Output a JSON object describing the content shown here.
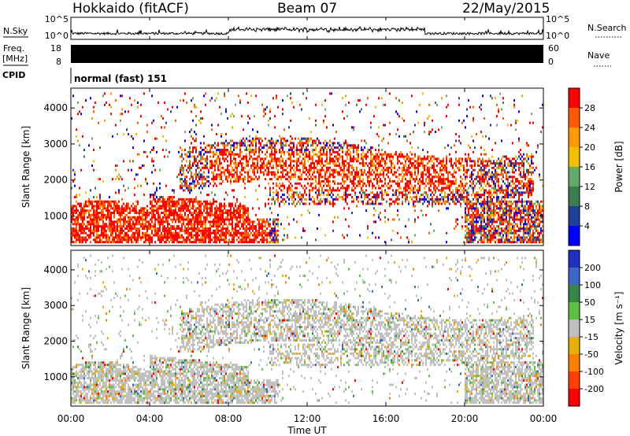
{
  "header": {
    "title": "Hokkaido (fitACF)",
    "beam": "Beam 07",
    "date": "22/May/2015"
  },
  "strips": {
    "nsky_label": "N.Sky",
    "nsearch_label": "N.Search",
    "nsky_ticks": [
      "10^5",
      "10^0"
    ],
    "freq_label_top": "Freq.",
    "freq_label_unit": "[MHz]",
    "freq_ticks": [
      "18",
      "8"
    ],
    "nave_label": "Nave",
    "nave_ticks": [
      "60",
      "0"
    ],
    "cpid_label": "CPID",
    "cpid_value": "normal (fast) 151"
  },
  "chart_data": [
    {
      "type": "heatmap",
      "panel": "power",
      "ylabel": "Slant Range [km]",
      "xlabel": "",
      "x_ticks": [
        "00:00",
        "04:00",
        "08:00",
        "12:00",
        "16:00",
        "20:00",
        "00:00"
      ],
      "x_range_hours": [
        0,
        24
      ],
      "y_ticks": [
        1000,
        2000,
        3000,
        4000
      ],
      "ylim": [
        180,
        4550
      ],
      "colorbar": {
        "label": "Power [dB]",
        "ticks": [
          "28",
          "24",
          "20",
          "16",
          "12",
          "8",
          "4"
        ],
        "colors": [
          "#ff0000",
          "#ff5a00",
          "#ff9a00",
          "#f0c000",
          "#66a86a",
          "#3c7c50",
          "#1f3f9a",
          "#0000ff"
        ]
      }
    },
    {
      "type": "heatmap",
      "panel": "velocity",
      "ylabel": "Slant Range [km]",
      "xlabel": "Time UT",
      "x_ticks": [
        "00:00",
        "04:00",
        "08:00",
        "12:00",
        "16:00",
        "20:00",
        "00:00"
      ],
      "x_range_hours": [
        0,
        24
      ],
      "y_ticks": [
        1000,
        2000,
        3000,
        4000
      ],
      "ylim": [
        180,
        4550
      ],
      "colorbar": {
        "label": "Velocity [m s^-1]",
        "ticks": [
          "200",
          "100",
          "50",
          "15",
          "-15",
          "-50",
          "-100",
          "-200"
        ],
        "colors": [
          "#2030c0",
          "#3c66c8",
          "#37864a",
          "#5fbf3f",
          "#c0c0c0",
          "#e8b000",
          "#ff8000",
          "#ff4000",
          "#ff0000"
        ]
      }
    }
  ]
}
